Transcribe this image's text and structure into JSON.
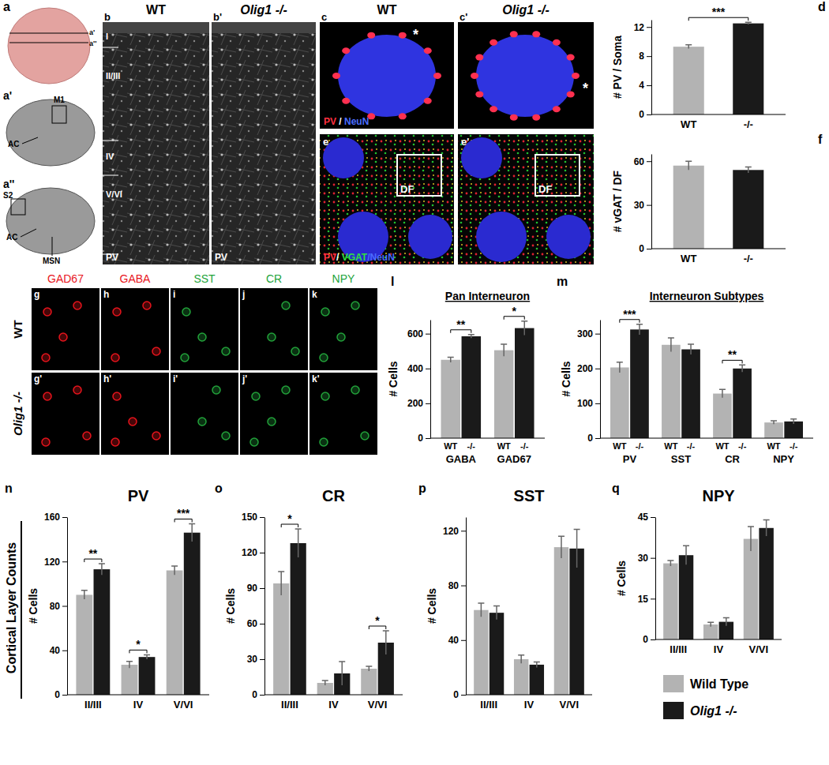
{
  "panel_a": {
    "letters": [
      "a",
      "a'",
      "a''"
    ],
    "slice_1_labels": [
      "M1",
      "AC"
    ],
    "slice_2_labels": [
      "S2",
      "AC",
      "MSN"
    ]
  },
  "panel_b": {
    "letters": [
      "b",
      "b'"
    ],
    "columns": [
      "WT",
      "Olig1 -/-"
    ],
    "layers": [
      "I",
      "II/III",
      "IV",
      "V/VI"
    ],
    "stain": "PV"
  },
  "panel_c": {
    "letters": [
      "c",
      "c'"
    ],
    "columns": [
      "WT",
      "Olig1 -/-"
    ],
    "stain": [
      {
        "text": "PV",
        "color": "#ff3040"
      },
      {
        "text": " / ",
        "color": "#ffffff"
      },
      {
        "text": "NeuN",
        "color": "#4a6cff"
      }
    ],
    "marks": [
      "*",
      "*"
    ]
  },
  "panel_e": {
    "letters": [
      "e",
      "e'"
    ],
    "stain": [
      {
        "text": "PV",
        "color": "#ff3040"
      },
      {
        "text": "/ ",
        "color": "#ffffff"
      },
      {
        "text": "VGAT",
        "color": "#30e040"
      },
      {
        "text": "/NeuN",
        "color": "#4a6cff"
      }
    ],
    "region": "DF"
  },
  "panel_g_k": {
    "rows": [
      "WT",
      "Olig1 -/-"
    ],
    "stains": [
      {
        "name": "GAD67",
        "color": "#e8141c",
        "letters": [
          "g",
          "g'"
        ]
      },
      {
        "name": "GABA",
        "color": "#e8141c",
        "letters": [
          "h",
          "h'"
        ]
      },
      {
        "name": "SST",
        "color": "#22a33a",
        "letters": [
          "i",
          "i'"
        ]
      },
      {
        "name": "CR",
        "color": "#22a33a",
        "letters": [
          "j",
          "j'"
        ]
      },
      {
        "name": "NPY",
        "color": "#22a33a",
        "letters": [
          "k",
          "k'"
        ]
      }
    ]
  },
  "row_label": "Cortical Layer Counts",
  "chart_data": [
    {
      "panel": "d",
      "type": "bar",
      "y_label": "# PV / Soma",
      "categories": [
        "WT",
        "-/-"
      ],
      "values": [
        9.3,
        12.5
      ],
      "errors": [
        0.25,
        0.15
      ],
      "colors": [
        "#b3b3b3",
        "#1a1a1a"
      ],
      "ylim": [
        0,
        13
      ],
      "yticks": [
        0,
        4,
        8,
        12
      ],
      "annotations": [
        {
          "text": "***"
        }
      ]
    },
    {
      "panel": "f",
      "type": "bar",
      "y_label": "# vGAT / DF",
      "categories": [
        "WT",
        "-/-"
      ],
      "values": [
        57,
        54
      ],
      "errors": [
        3,
        2
      ],
      "colors": [
        "#b3b3b3",
        "#1a1a1a"
      ],
      "ylim": [
        0,
        65
      ],
      "yticks": [
        0,
        30,
        60
      ]
    },
    {
      "panel": "l",
      "type": "bar",
      "title": "Pan Interneuron",
      "y_label": "# Cells",
      "categories": [
        "GABA",
        "GAD67"
      ],
      "series": [
        {
          "name": "WT",
          "color": "#b3b3b3",
          "values": [
            450,
            505
          ],
          "errors": [
            15,
            35
          ]
        },
        {
          "name": "-/-",
          "color": "#1a1a1a",
          "values": [
            585,
            632
          ],
          "errors": [
            10,
            40
          ]
        }
      ],
      "ylim": [
        0,
        680
      ],
      "yticks": [
        0,
        200,
        400,
        600
      ],
      "annotations": [
        {
          "category": "GABA",
          "text": "**"
        },
        {
          "category": "GAD67",
          "text": "*"
        }
      ]
    },
    {
      "panel": "m",
      "type": "bar",
      "title": "Interneuron Subtypes",
      "y_label": "# Cells",
      "categories": [
        "PV",
        "SST",
        "CR",
        "NPY"
      ],
      "series": [
        {
          "name": "WT",
          "color": "#b3b3b3",
          "values": [
            203,
            268,
            128,
            45
          ],
          "errors": [
            15,
            20,
            12,
            5
          ]
        },
        {
          "name": "-/-",
          "color": "#1a1a1a",
          "values": [
            312,
            255,
            200,
            48
          ],
          "errors": [
            15,
            15,
            10,
            7
          ]
        }
      ],
      "ylim": [
        0,
        340
      ],
      "yticks": [
        0,
        100,
        200,
        300
      ],
      "annotations": [
        {
          "category": "PV",
          "text": "***"
        },
        {
          "category": "CR",
          "text": "**"
        }
      ]
    },
    {
      "panel": "n",
      "type": "bar",
      "title": "PV",
      "y_label": "# Cells",
      "categories": [
        "II/III",
        "IV",
        "V/VI"
      ],
      "series": [
        {
          "color": "#b3b3b3",
          "values": [
            90,
            27,
            112
          ],
          "errors": [
            4,
            3,
            4
          ]
        },
        {
          "color": "#1a1a1a",
          "values": [
            113,
            34,
            146
          ],
          "errors": [
            5,
            2,
            8
          ]
        }
      ],
      "ylim": [
        0,
        160
      ],
      "yticks": [
        0,
        40,
        80,
        120,
        160
      ],
      "annotations": [
        {
          "category": "II/III",
          "text": "**"
        },
        {
          "category": "IV",
          "text": "*"
        },
        {
          "category": "V/VI",
          "text": "***"
        }
      ]
    },
    {
      "panel": "o",
      "type": "bar",
      "title": "CR",
      "y_label": "# Cells",
      "categories": [
        "II/III",
        "IV",
        "V/VI"
      ],
      "series": [
        {
          "color": "#b3b3b3",
          "values": [
            94,
            10,
            22
          ],
          "errors": [
            10,
            2,
            2
          ]
        },
        {
          "color": "#1a1a1a",
          "values": [
            128,
            18,
            44
          ],
          "errors": [
            12,
            10,
            10
          ]
        }
      ],
      "ylim": [
        0,
        150
      ],
      "yticks": [
        0,
        30,
        60,
        90,
        120,
        150
      ],
      "annotations": [
        {
          "category": "II/III",
          "text": "*"
        },
        {
          "category": "V/VI",
          "text": "*"
        }
      ]
    },
    {
      "panel": "p",
      "type": "bar",
      "title": "SST",
      "y_label": "# Cells",
      "categories": [
        "II/III",
        "IV",
        "V/VI"
      ],
      "series": [
        {
          "color": "#b3b3b3",
          "values": [
            62,
            26,
            108
          ],
          "errors": [
            5,
            3,
            8
          ]
        },
        {
          "color": "#1a1a1a",
          "values": [
            60,
            22,
            107
          ],
          "errors": [
            5,
            2,
            14
          ]
        }
      ],
      "ylim": [
        0,
        130
      ],
      "yticks": [
        0,
        40,
        80,
        120
      ]
    },
    {
      "panel": "q",
      "type": "bar",
      "title": "NPY",
      "y_label": "# Cells",
      "categories": [
        "II/III",
        "IV",
        "V/VI"
      ],
      "series": [
        {
          "name": "Wild Type",
          "color": "#b3b3b3",
          "values": [
            28,
            5.5,
            37
          ],
          "errors": [
            1,
            0.8,
            4.5
          ]
        },
        {
          "name": "Olig1 -/-",
          "color": "#1a1a1a",
          "values": [
            31,
            6.5,
            41
          ],
          "errors": [
            3.5,
            1.5,
            3
          ]
        }
      ],
      "ylim": [
        0,
        45
      ],
      "yticks": [
        0,
        15,
        30,
        45
      ],
      "legend": "bottom"
    }
  ]
}
